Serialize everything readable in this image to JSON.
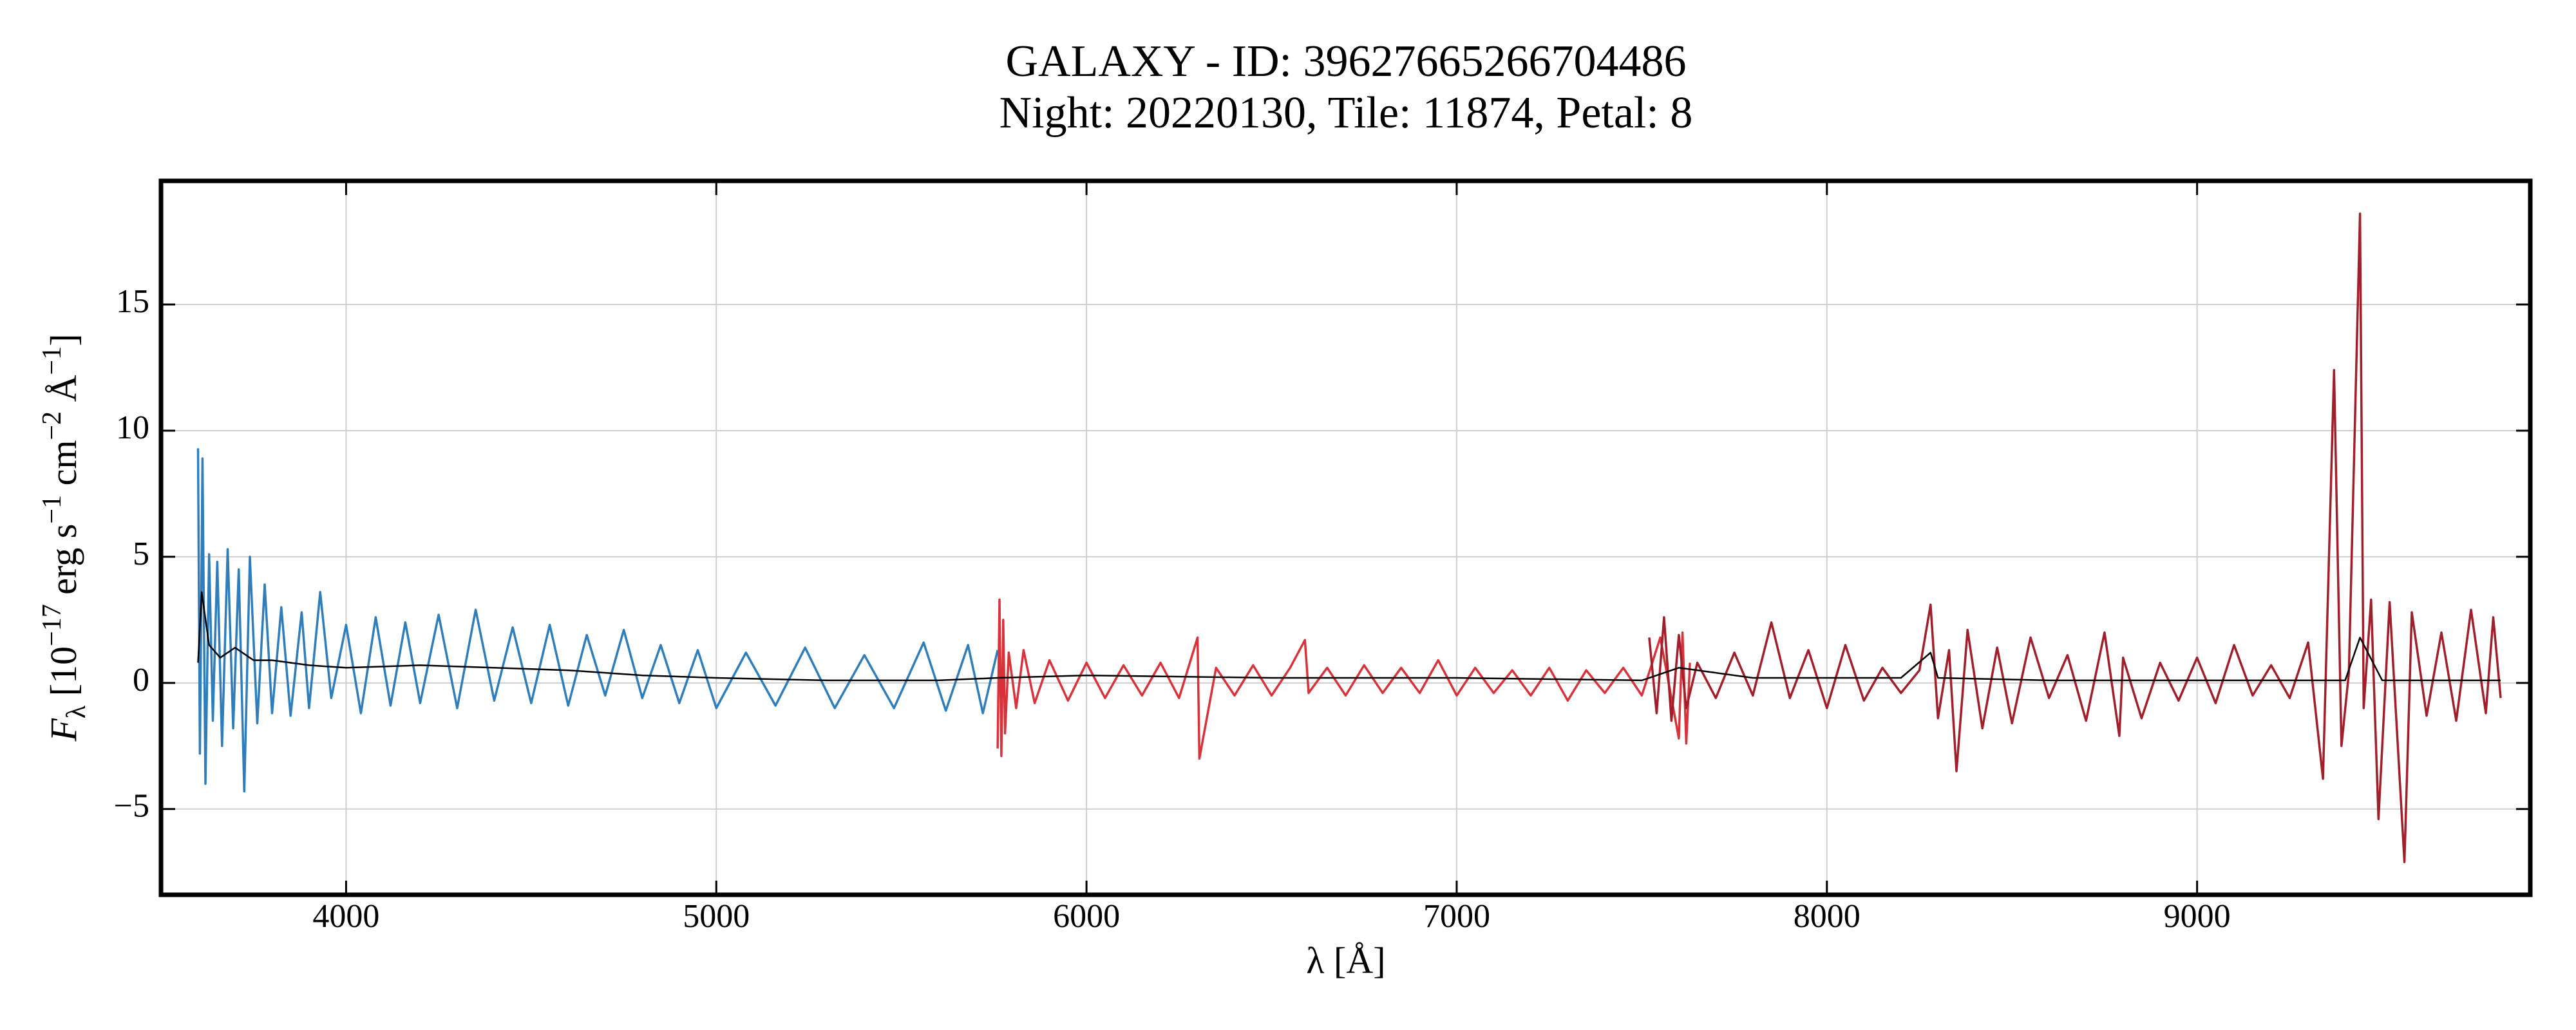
{
  "chart_data": {
    "type": "line",
    "title": "GALAXY - ID: 39627665266704486",
    "subtitle": "Night: 20220130, Tile: 11874, Petal: 8",
    "xlabel": "λ [Å]",
    "ylabel_parts": [
      "F",
      "λ",
      " [10",
      "−17",
      " erg s",
      "−1",
      " cm",
      "−2",
      " Å",
      "−1",
      "]"
    ],
    "xlim": [
      3500,
      9900
    ],
    "ylim": [
      -8.4,
      19.9
    ],
    "xticks": [
      4000,
      5000,
      6000,
      7000,
      8000,
      9000
    ],
    "yticks": [
      {
        "value": -5,
        "label": "−5"
      },
      0,
      5,
      10,
      15
    ],
    "grid": true,
    "series": [
      {
        "color": "#2f7dba",
        "x": [
          3600,
          3605,
          3612,
          3620,
          3630,
          3640,
          3652,
          3665,
          3680,
          3695,
          3710,
          3725,
          3740,
          3760,
          3780,
          3800,
          3825,
          3850,
          3880,
          3900,
          3930,
          3960,
          4000,
          4040,
          4080,
          4120,
          4160,
          4200,
          4250,
          4300,
          4350,
          4400,
          4450,
          4500,
          4550,
          4600,
          4650,
          4700,
          4750,
          4800,
          4850,
          4900,
          4950,
          5000,
          5080,
          5160,
          5240,
          5320,
          5400,
          5480,
          5560,
          5620,
          5680,
          5720,
          5760
        ],
        "values": [
          9.3,
          -2.8,
          8.9,
          -4.0,
          5.1,
          -1.5,
          4.8,
          -2.5,
          5.3,
          -1.8,
          4.5,
          -4.3,
          5.0,
          -1.6,
          3.9,
          -1.2,
          3.0,
          -1.3,
          2.8,
          -1.0,
          3.6,
          -0.6,
          2.3,
          -1.2,
          2.6,
          -0.9,
          2.4,
          -0.8,
          2.7,
          -1.0,
          2.9,
          -0.7,
          2.2,
          -0.8,
          2.3,
          -0.9,
          1.9,
          -0.5,
          2.1,
          -0.6,
          1.5,
          -0.8,
          1.3,
          -1.0,
          1.2,
          -0.9,
          1.4,
          -1.0,
          1.1,
          -1.0,
          1.6,
          -1.1,
          1.5,
          -1.2,
          1.3
        ]
      },
      {
        "color": "#d8333b",
        "x": [
          5760,
          5765,
          5770,
          5775,
          5780,
          5790,
          5810,
          5830,
          5860,
          5900,
          5950,
          6000,
          6050,
          6100,
          6150,
          6200,
          6250,
          6300,
          6305,
          6350,
          6400,
          6450,
          6500,
          6550,
          6590,
          6600,
          6650,
          6700,
          6750,
          6800,
          6850,
          6900,
          6950,
          7000,
          7050,
          7100,
          7150,
          7200,
          7250,
          7300,
          7350,
          7400,
          7450,
          7500,
          7550,
          7600,
          7610,
          7620,
          7630
        ],
        "values": [
          -2.6,
          3.3,
          -2.9,
          2.5,
          -2.0,
          1.2,
          -1.0,
          1.3,
          -0.8,
          0.9,
          -0.7,
          0.8,
          -0.6,
          0.7,
          -0.5,
          0.8,
          -0.6,
          1.8,
          -3.0,
          0.6,
          -0.5,
          0.7,
          -0.5,
          0.6,
          1.7,
          -0.4,
          0.6,
          -0.5,
          0.7,
          -0.4,
          0.6,
          -0.4,
          0.9,
          -0.5,
          0.6,
          -0.4,
          0.5,
          -0.5,
          0.6,
          -0.7,
          0.5,
          -0.4,
          0.6,
          -0.5,
          1.8,
          -2.2,
          2.0,
          -2.4,
          0.8
        ]
      },
      {
        "color": "#a11f2a",
        "x": [
          7520,
          7540,
          7560,
          7580,
          7600,
          7620,
          7650,
          7700,
          7750,
          7800,
          7850,
          7900,
          7950,
          8000,
          8050,
          8100,
          8150,
          8200,
          8250,
          8280,
          8300,
          8330,
          8350,
          8380,
          8420,
          8460,
          8500,
          8550,
          8600,
          8650,
          8700,
          8750,
          8790,
          8800,
          8850,
          8900,
          8950,
          9000,
          9050,
          9100,
          9150,
          9200,
          9250,
          9300,
          9340,
          9370,
          9390,
          9410,
          9440,
          9450,
          9470,
          9490,
          9520,
          9560,
          9580,
          9620,
          9660,
          9700,
          9740,
          9780,
          9800,
          9820
        ],
        "values": [
          1.8,
          -1.2,
          2.6,
          -1.5,
          1.9,
          -1.0,
          0.8,
          -0.6,
          1.2,
          -0.5,
          2.4,
          -0.6,
          1.3,
          -1.0,
          1.5,
          -0.7,
          0.6,
          -0.4,
          0.5,
          3.1,
          -1.4,
          1.3,
          -3.5,
          2.1,
          -1.8,
          1.4,
          -1.6,
          1.8,
          -0.6,
          1.1,
          -1.5,
          2.0,
          -2.1,
          1.0,
          -1.4,
          0.8,
          -0.7,
          1.0,
          -0.8,
          1.5,
          -0.5,
          0.7,
          -0.6,
          1.6,
          -3.8,
          12.4,
          -2.5,
          0.4,
          18.6,
          -1.0,
          3.3,
          -5.4,
          3.2,
          -7.1,
          2.8,
          -1.3,
          2.0,
          -1.5,
          2.9,
          -1.2,
          2.6,
          -0.6
        ]
      },
      {
        "color": "#000000",
        "x": [
          3600,
          3610,
          3630,
          3660,
          3700,
          3750,
          3800,
          3900,
          4000,
          4200,
          4400,
          4600,
          4800,
          5000,
          5300,
          5600,
          5760,
          6000,
          6500,
          7000,
          7500,
          7600,
          7800,
          8200,
          8280,
          8300,
          8600,
          9000,
          9400,
          9440,
          9500,
          9820
        ],
        "values": [
          0.8,
          3.6,
          1.5,
          1.0,
          1.4,
          0.9,
          0.9,
          0.7,
          0.6,
          0.7,
          0.6,
          0.5,
          0.3,
          0.2,
          0.1,
          0.1,
          0.2,
          0.3,
          0.2,
          0.2,
          0.1,
          0.6,
          0.2,
          0.2,
          1.2,
          0.2,
          0.1,
          0.1,
          0.1,
          1.8,
          0.1,
          0.1
        ]
      }
    ]
  }
}
